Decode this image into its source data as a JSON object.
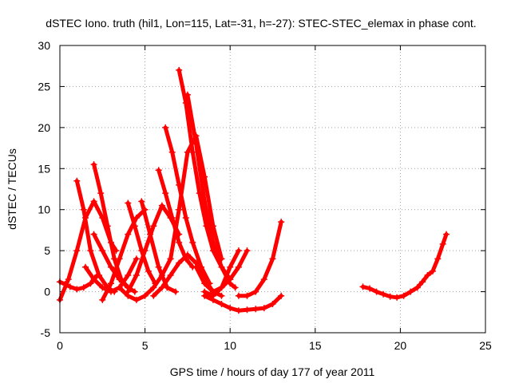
{
  "chart_data": {
    "type": "scatter",
    "title": "dSTEC Iono. truth (hil1, Lon=115, Lat=-31, h=-27): STEC-STEC_elemax in phase cont.",
    "xlabel": "GPS time / hours of day 177 of year 2011",
    "ylabel": "dSTEC  / TECUs",
    "xlim": [
      0,
      25
    ],
    "ylim": [
      -5,
      30
    ],
    "xticks": [
      "0",
      "5",
      "10",
      "15",
      "20",
      "25"
    ],
    "yticks": [
      "-5",
      "0",
      "5",
      "10",
      "15",
      "20",
      "25",
      "30"
    ],
    "xtick_values": [
      0,
      5,
      10,
      15,
      20,
      25
    ],
    "ytick_values": [
      -5,
      0,
      5,
      10,
      15,
      20,
      25,
      30
    ],
    "grid": true,
    "marker": "+",
    "color": "#ff0000",
    "series": [
      {
        "x": [
          0,
          0.3,
          0.6,
          1.0,
          1.4,
          1.8,
          2.2
        ],
        "y": [
          1.2,
          0.9,
          0.6,
          0.3,
          0.5,
          1.0,
          2.0
        ]
      },
      {
        "x": [
          0,
          0.5,
          1.0,
          1.5,
          2.0,
          2.5,
          3.0,
          3.3
        ],
        "y": [
          -1.0,
          1.5,
          5.0,
          9.0,
          11.0,
          9.0,
          6.0,
          5.0
        ]
      },
      {
        "x": [
          1.0,
          1.4,
          1.8,
          2.3,
          2.8,
          3.2
        ],
        "y": [
          13.5,
          10.0,
          5.0,
          2.0,
          0.5,
          0.0
        ]
      },
      {
        "x": [
          2.0,
          2.4,
          2.8,
          3.2,
          3.6,
          4.0
        ],
        "y": [
          15.5,
          12.0,
          8.0,
          4.0,
          1.5,
          0.5
        ]
      },
      {
        "x": [
          2.0,
          2.5,
          3.0,
          3.5,
          4.0,
          4.4
        ],
        "y": [
          7.0,
          5.0,
          3.0,
          1.5,
          0.5,
          0.0
        ]
      },
      {
        "x": [
          1.5,
          2.0,
          2.5,
          3.0,
          3.5,
          4.0,
          4.5
        ],
        "y": [
          3.0,
          1.5,
          0.5,
          0.0,
          0.5,
          2.0,
          4.0
        ]
      },
      {
        "x": [
          2.5,
          3.0,
          3.5,
          4.0,
          4.5,
          5.0
        ],
        "y": [
          -1.0,
          1.0,
          4.0,
          7.0,
          9.0,
          10.0
        ]
      },
      {
        "x": [
          4.0,
          4.4,
          4.8,
          5.2,
          5.6
        ],
        "y": [
          10.8,
          8.0,
          5.0,
          2.5,
          1.0
        ]
      },
      {
        "x": [
          4.8,
          5.3,
          5.8,
          6.3,
          6.8
        ],
        "y": [
          11.0,
          7.0,
          3.0,
          0.5,
          0.0
        ]
      },
      {
        "x": [
          3.5,
          4.0,
          4.5,
          5.0,
          5.5,
          6.0,
          6.5
        ],
        "y": [
          0.5,
          -0.5,
          -1.0,
          -0.5,
          0.5,
          2.0,
          4.0
        ]
      },
      {
        "x": [
          4.0,
          4.5,
          5.0,
          5.5,
          6.0,
          6.5,
          7.0
        ],
        "y": [
          0.0,
          2.0,
          5.0,
          8.0,
          10.5,
          9.0,
          7.0
        ]
      },
      {
        "x": [
          5.8,
          6.2,
          6.6,
          7.0,
          7.4,
          7.8
        ],
        "y": [
          14.8,
          12.0,
          9.0,
          6.0,
          4.0,
          3.0
        ]
      },
      {
        "x": [
          6.2,
          6.6,
          7.0,
          7.4,
          7.8,
          8.3,
          8.8
        ],
        "y": [
          20.0,
          17.0,
          13.0,
          9.0,
          6.0,
          3.0,
          1.0
        ]
      },
      {
        "x": [
          6.5,
          7.0,
          7.5,
          8.0,
          8.5,
          9.0,
          9.5
        ],
        "y": [
          4.0,
          10.0,
          17.0,
          19.0,
          14.0,
          8.0,
          4.0
        ]
      },
      {
        "x": [
          7.0,
          7.4,
          7.8,
          8.2,
          8.6,
          9.0,
          9.5,
          10.0
        ],
        "y": [
          27.0,
          23.0,
          17.0,
          12.0,
          8.0,
          5.0,
          3.0,
          1.5
        ]
      },
      {
        "x": [
          7.5,
          8.0,
          8.5,
          9.0,
          9.5,
          10.0,
          10.3
        ],
        "y": [
          24.0,
          18.0,
          11.0,
          6.0,
          3.0,
          1.0,
          0.5
        ]
      },
      {
        "x": [
          5.5,
          6.0,
          6.5,
          7.0,
          7.5,
          8.0,
          8.5,
          9.0,
          9.5
        ],
        "y": [
          -0.5,
          0.5,
          2.0,
          3.5,
          4.5,
          3.5,
          1.5,
          0.0,
          -0.5
        ]
      },
      {
        "x": [
          8.0,
          8.5,
          9.0,
          9.5,
          10.0,
          10.5,
          11.0
        ],
        "y": [
          3.0,
          1.0,
          0.0,
          0.5,
          1.5,
          3.0,
          5.0
        ]
      },
      {
        "x": [
          8.5,
          9.0,
          9.5,
          10.0,
          10.5
        ],
        "y": [
          0.0,
          -0.5,
          0.5,
          3.0,
          5.0
        ]
      },
      {
        "x": [
          8.5,
          9.0,
          9.5,
          10.0,
          10.5,
          11.0,
          11.5,
          12.0,
          12.5,
          13.0
        ],
        "y": [
          -0.5,
          -1.0,
          -1.5,
          -2.0,
          -2.3,
          -2.2,
          -2.1,
          -2.0,
          -1.5,
          -0.5
        ]
      },
      {
        "x": [
          10.5,
          11.0,
          11.5,
          12.0,
          12.5,
          13.0
        ],
        "y": [
          -0.5,
          -0.5,
          0.0,
          1.5,
          4.0,
          8.5
        ]
      },
      {
        "x": [
          17.8,
          18.2,
          18.6,
          19.0,
          19.4,
          19.8,
          20.2,
          20.6,
          21.0
        ],
        "y": [
          0.6,
          0.4,
          0.0,
          -0.3,
          -0.6,
          -0.7,
          -0.5,
          0.0,
          0.5
        ]
      },
      {
        "x": [
          21.0,
          21.3,
          21.6,
          21.9,
          22.2,
          22.5,
          22.7
        ],
        "y": [
          0.5,
          1.2,
          2.0,
          2.5,
          4.0,
          5.8,
          7.0
        ]
      }
    ]
  }
}
